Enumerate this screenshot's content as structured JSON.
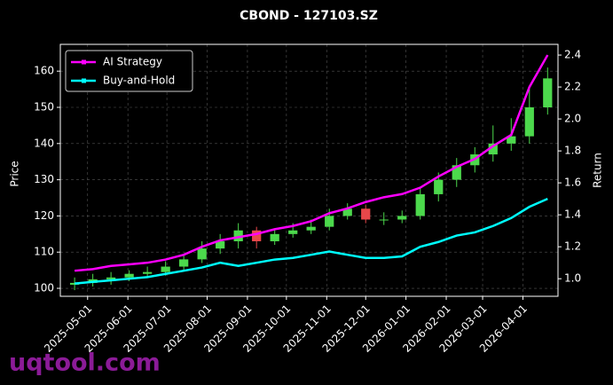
{
  "chart_data": {
    "type": "candlestick",
    "title": "CBOND - 127103.SZ",
    "ylabel": "Price",
    "y2label": "Return",
    "watermark": "uqtool.com",
    "x": [
      "2025-04-21",
      "2025-05-05",
      "2025-05-19",
      "2025-06-02",
      "2025-06-16",
      "2025-06-30",
      "2025-07-14",
      "2025-07-28",
      "2025-08-11",
      "2025-08-25",
      "2025-09-08",
      "2025-09-22",
      "2025-10-06",
      "2025-10-20",
      "2025-11-03",
      "2025-11-17",
      "2025-12-01",
      "2025-12-15",
      "2025-12-29",
      "2026-01-12",
      "2026-01-26",
      "2026-02-09",
      "2026-02-23",
      "2026-03-09",
      "2026-03-23",
      "2026-04-06",
      "2026-04-20"
    ],
    "open": [
      101,
      101.5,
      102.5,
      103,
      104,
      104.5,
      106,
      108,
      111,
      113,
      116,
      113,
      115,
      116,
      117,
      120,
      122,
      119,
      119,
      120,
      126,
      130,
      134,
      137,
      140,
      142,
      150
    ],
    "high": [
      103,
      104,
      104.5,
      105,
      106,
      107.5,
      109.5,
      113,
      115,
      118,
      117,
      116.5,
      118,
      119,
      122,
      123.5,
      123,
      121,
      121.5,
      128,
      132,
      136,
      139,
      145,
      147,
      156,
      161
    ],
    "low": [
      99.5,
      100.5,
      101,
      102,
      103,
      103.5,
      105,
      107,
      109.5,
      111,
      111,
      112,
      114,
      115,
      116,
      119,
      118,
      117.5,
      118,
      119,
      124,
      128,
      132,
      135,
      138,
      140,
      148
    ],
    "close": [
      101.5,
      102.5,
      103,
      104,
      104.5,
      106,
      108,
      111,
      113,
      116,
      113,
      115,
      116,
      117,
      120,
      122,
      119,
      119,
      120,
      126,
      130,
      134,
      137,
      140,
      142,
      150,
      158
    ],
    "up_color": "#4cd94c",
    "down_color": "#e8474a",
    "series": [
      {
        "name": "AI Strategy",
        "color": "#ff00ff",
        "axis": "y2",
        "values": [
          1.05,
          1.06,
          1.08,
          1.09,
          1.1,
          1.12,
          1.15,
          1.2,
          1.24,
          1.26,
          1.28,
          1.31,
          1.33,
          1.36,
          1.41,
          1.44,
          1.48,
          1.51,
          1.53,
          1.57,
          1.64,
          1.7,
          1.75,
          1.83,
          1.9,
          2.2,
          2.4
        ]
      },
      {
        "name": "Buy-and-Hold",
        "color": "#00ffff",
        "axis": "y2",
        "values": [
          0.97,
          0.98,
          0.99,
          1.0,
          1.01,
          1.03,
          1.05,
          1.07,
          1.1,
          1.08,
          1.1,
          1.12,
          1.13,
          1.15,
          1.17,
          1.15,
          1.13,
          1.13,
          1.14,
          1.2,
          1.23,
          1.27,
          1.29,
          1.33,
          1.38,
          1.45,
          1.5
        ]
      }
    ],
    "xlim": [
      "2025-04-10",
      "2026-04-28"
    ],
    "xticks": [
      "2025-05-01",
      "2025-06-01",
      "2025-07-01",
      "2025-08-01",
      "2025-09-01",
      "2025-10-01",
      "2025-11-01",
      "2025-12-01",
      "2026-01-01",
      "2026-02-01",
      "2026-03-01",
      "2026-04-01"
    ],
    "ylim": [
      97.8,
      167.4
    ],
    "yticks": [
      100,
      110,
      120,
      130,
      140,
      150,
      160
    ],
    "y2lim": [
      0.89,
      2.467
    ],
    "y2ticks": [
      {
        "value": 1.0,
        "label": "1.0"
      },
      {
        "value": 1.2,
        "label": "1.2"
      },
      {
        "value": 1.4,
        "label": "1.4"
      },
      {
        "value": 1.6,
        "label": "1.6"
      },
      {
        "value": 1.8,
        "label": "1.8"
      },
      {
        "value": 2.0,
        "label": "2.0"
      },
      {
        "value": 2.2,
        "label": "2.2"
      },
      {
        "value": 2.4,
        "label": "2.4"
      }
    ],
    "grid": true,
    "legend": "upper left"
  }
}
